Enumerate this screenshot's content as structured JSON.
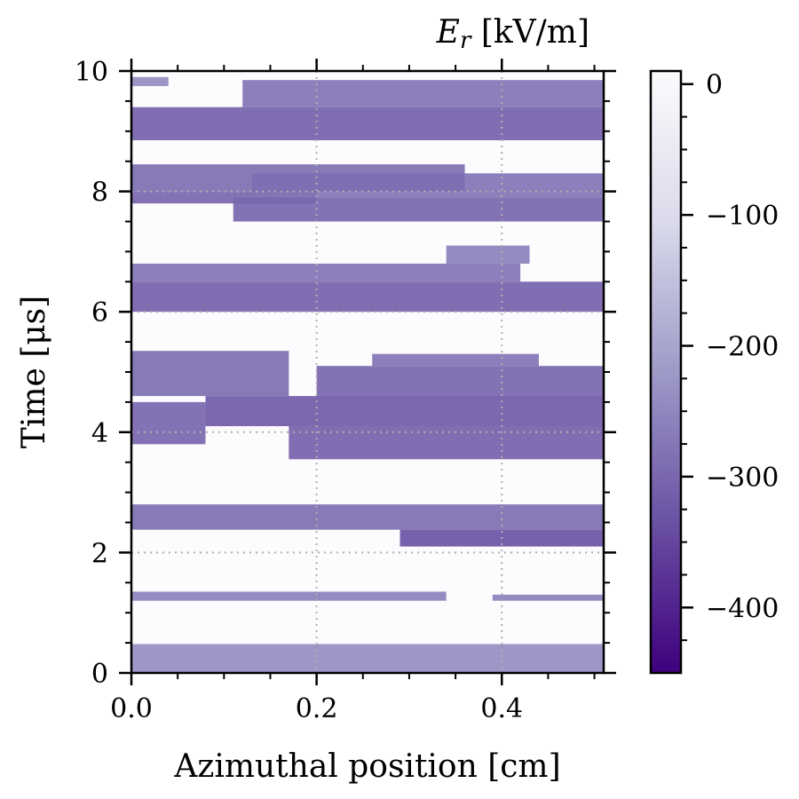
{
  "chart_data": {
    "type": "heatmap",
    "title": "",
    "xlabel": "Azimuthal position [cm]",
    "ylabel": "Time [μs]",
    "xlim": [
      0,
      0.51
    ],
    "ylim": [
      0,
      10
    ],
    "x_ticks": [
      {
        "value": 0.0,
        "label": "0.0"
      },
      {
        "value": 0.2,
        "label": "0.2"
      },
      {
        "value": 0.4,
        "label": "0.4"
      }
    ],
    "y_ticks": [
      {
        "value": 0,
        "label": "0"
      },
      {
        "value": 2,
        "label": "2"
      },
      {
        "value": 4,
        "label": "4"
      },
      {
        "value": 6,
        "label": "6"
      },
      {
        "value": 8,
        "label": "8"
      },
      {
        "value": 10,
        "label": "10"
      }
    ],
    "grid": true,
    "colorbar": {
      "title_symbol": "E",
      "title_subscript": "r",
      "title_units": " [kV/m]",
      "range": [
        -450,
        10
      ],
      "colormap": [
        "#3f007d",
        "#6a51a3",
        "#9e9ac8",
        "#dadaeb",
        "#fcfbfd"
      ],
      "ticks": [
        {
          "value": 0,
          "label": "0"
        },
        {
          "value": -100,
          "label": "−100"
        },
        {
          "value": -200,
          "label": "−200"
        },
        {
          "value": -300,
          "label": "−300"
        },
        {
          "value": -400,
          "label": "−400"
        }
      ]
    },
    "field_regions": [
      {
        "x0": 0.0,
        "x1": 0.51,
        "t0": 0.0,
        "t1": 0.48,
        "value": -240
      },
      {
        "x0": 0.0,
        "x1": 0.34,
        "t0": 1.2,
        "t1": 1.35,
        "value": -260
      },
      {
        "x0": 0.39,
        "x1": 0.51,
        "t0": 1.2,
        "t1": 1.3,
        "value": -260
      },
      {
        "x0": 0.0,
        "x1": 0.51,
        "t0": 2.38,
        "t1": 2.8,
        "value": -290
      },
      {
        "x0": 0.29,
        "x1": 0.51,
        "t0": 2.1,
        "t1": 2.38,
        "value": -330
      },
      {
        "x0": 0.17,
        "x1": 0.51,
        "t0": 3.55,
        "t1": 4.1,
        "value": -310
      },
      {
        "x0": 0.0,
        "x1": 0.08,
        "t0": 3.8,
        "t1": 4.5,
        "value": -300
      },
      {
        "x0": 0.08,
        "x1": 0.51,
        "t0": 4.1,
        "t1": 4.6,
        "value": -320
      },
      {
        "x0": 0.2,
        "x1": 0.51,
        "t0": 4.5,
        "t1": 5.1,
        "value": -300
      },
      {
        "x0": 0.0,
        "x1": 0.17,
        "t0": 4.6,
        "t1": 5.35,
        "value": -290
      },
      {
        "x0": 0.26,
        "x1": 0.44,
        "t0": 5.1,
        "t1": 5.3,
        "value": -280
      },
      {
        "x0": 0.0,
        "x1": 0.51,
        "t0": 6.0,
        "t1": 6.5,
        "value": -310
      },
      {
        "x0": 0.0,
        "x1": 0.42,
        "t0": 6.5,
        "t1": 6.8,
        "value": -280
      },
      {
        "x0": 0.34,
        "x1": 0.43,
        "t0": 6.8,
        "t1": 7.1,
        "value": -260
      },
      {
        "x0": 0.11,
        "x1": 0.51,
        "t0": 7.5,
        "t1": 7.9,
        "value": -300
      },
      {
        "x0": 0.0,
        "x1": 0.2,
        "t0": 7.8,
        "t1": 8.0,
        "value": -300
      },
      {
        "x0": 0.13,
        "x1": 0.51,
        "t0": 7.9,
        "t1": 8.3,
        "value": -280
      },
      {
        "x0": 0.0,
        "x1": 0.36,
        "t0": 8.0,
        "t1": 8.45,
        "value": -290
      },
      {
        "x0": 0.0,
        "x1": 0.51,
        "t0": 8.85,
        "t1": 9.4,
        "value": -310
      },
      {
        "x0": 0.12,
        "x1": 0.51,
        "t0": 9.4,
        "t1": 9.85,
        "value": -280
      },
      {
        "x0": 0.0,
        "x1": 0.04,
        "t0": 9.75,
        "t1": 9.9,
        "value": -240
      }
    ]
  }
}
